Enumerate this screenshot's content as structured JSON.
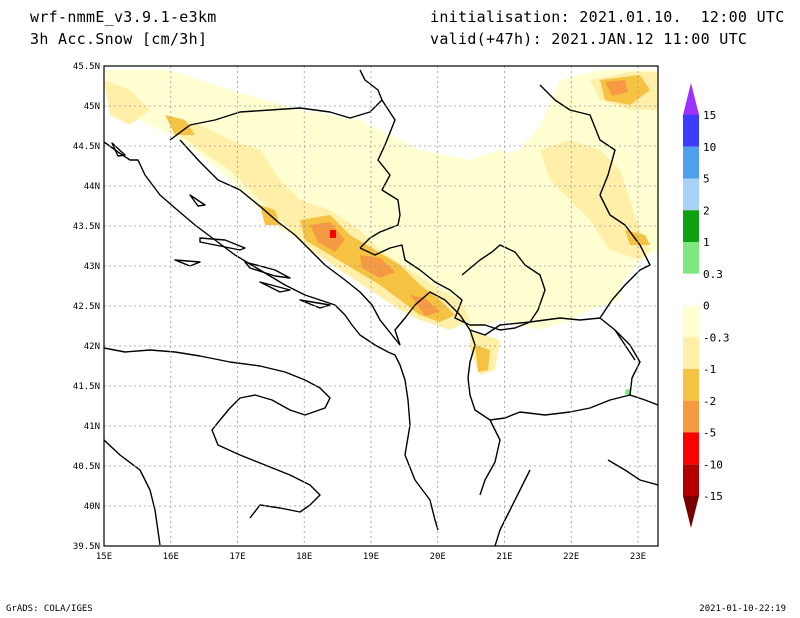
{
  "header": {
    "model": "wrf-nmmE_v3.9.1-e3km",
    "field": "3h Acc.Snow [cm/3h]",
    "init": "initialisation: 2021.01.10.  12:00 UTC",
    "valid": "valid(+47h): 2021.JAN.12 11:00 UTC"
  },
  "map": {
    "lon_labels": [
      "15E",
      "16E",
      "17E",
      "18E",
      "19E",
      "20E",
      "21E",
      "22E",
      "23E"
    ],
    "lat_labels": [
      "45.5N",
      "45N",
      "44.5N",
      "44N",
      "43.5N",
      "43N",
      "42.5N",
      "42N",
      "41.5N",
      "41N",
      "40.5N",
      "40N",
      "39.5N"
    ],
    "lon_range": [
      15,
      23.3
    ],
    "lat_range": [
      39.5,
      45.5
    ]
  },
  "legend": {
    "labels": [
      "15",
      "10",
      "5",
      "2",
      "1",
      "0.3",
      "0",
      "-0.3",
      "-1",
      "-2",
      "-5",
      "-10",
      "-15"
    ],
    "colors": [
      "#9b30ff",
      "#3c3cff",
      "#4fa0ee",
      "#a8d2f8",
      "#10a010",
      "#7ee87e",
      "#ffffff",
      "#ffffd2",
      "#ffefa8",
      "#f5c242",
      "#f59a42",
      "#ff0000",
      "#b40000",
      "#780000"
    ]
  },
  "footer": {
    "left": "GrADS: COLA/IGES",
    "right": "2021-01-10-22:19"
  }
}
